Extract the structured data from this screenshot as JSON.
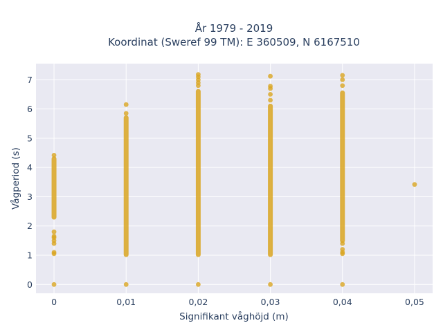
{
  "chart_data": {
    "type": "scatter",
    "title_lines": [
      "År 1979 - 2019",
      "Koordinat (Sweref 99 TM): E 360509, N 6167510"
    ],
    "xlabel": "Signifikant våghöjd (m)",
    "ylabel": "Vågperiod (s)",
    "xlim": [
      -0.0025,
      0.0525
    ],
    "ylim": [
      -0.3,
      7.55
    ],
    "x_ticks": [
      0,
      0.01,
      0.02,
      0.03,
      0.04,
      0.05
    ],
    "x_tick_labels": [
      "0",
      "0,01",
      "0,02",
      "0,03",
      "0,04",
      "0,05"
    ],
    "y_ticks": [
      0,
      1,
      2,
      3,
      4,
      5,
      6,
      7
    ],
    "y_tick_labels": [
      "0",
      "1",
      "2",
      "3",
      "4",
      "5",
      "6",
      "7"
    ],
    "grid": true,
    "plot_background": "#e9e9f2",
    "marker_color": "#d9a520",
    "series": [
      {
        "columns": [
          {
            "x": 0,
            "ranges": [
              [
                2.3,
                4.3
              ]
            ],
            "points": [
              0.0,
              1.05,
              1.1,
              1.4,
              1.5,
              1.6,
              1.65,
              1.8,
              4.42
            ]
          },
          {
            "x": 0.01,
            "ranges": [
              [
                1.02,
                5.7
              ]
            ],
            "points": [
              0.0,
              5.85,
              6.15
            ]
          },
          {
            "x": 0.02,
            "ranges": [
              [
                1.02,
                6.6
              ]
            ],
            "points": [
              0.0,
              6.8,
              6.9,
              7.0,
              7.1,
              7.18
            ]
          },
          {
            "x": 0.03,
            "ranges": [
              [
                1.02,
                6.1
              ]
            ],
            "points": [
              0.0,
              6.3,
              6.5,
              6.7,
              6.78,
              7.12
            ]
          },
          {
            "x": 0.04,
            "ranges": [
              [
                1.5,
                6.55
              ]
            ],
            "points": [
              0.0,
              1.05,
              1.1,
              1.2,
              1.4,
              6.8,
              7.0,
              7.15
            ]
          },
          {
            "x": 0.05,
            "ranges": [],
            "points": [
              3.42
            ]
          }
        ]
      }
    ]
  }
}
